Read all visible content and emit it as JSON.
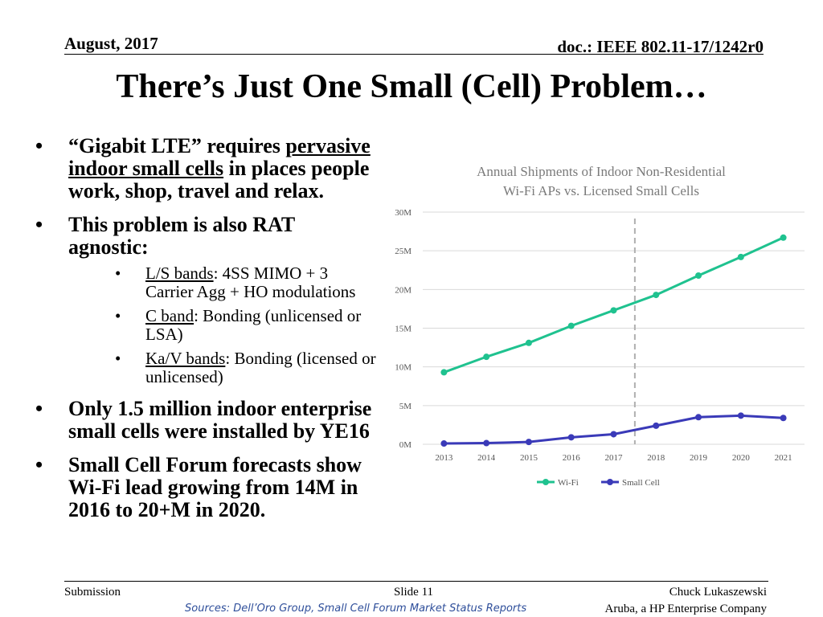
{
  "header": {
    "date": "August, 2017",
    "doc": "doc.: IEEE 802.11-17/1242r0"
  },
  "title": "There’s Just One Small (Cell) Problem…",
  "bullets": {
    "b1": {
      "p1": "“Gigabit LTE” requires ",
      "u": "pervasive indoor small cells",
      "p2": " in places people work, shop, travel and relax."
    },
    "b2": "This problem is also RAT agnostic:",
    "subs": [
      {
        "u": "L/S bands",
        "rest": ": 4SS MIMO + 3 Carrier Agg + HO modulations"
      },
      {
        "u": "C band",
        "rest": ": Bonding (unlicensed or LSA)"
      },
      {
        "u": "Ka/V bands",
        "rest": ": Bonding (licensed or unlicensed)"
      }
    ],
    "b3": "Only 1.5 million indoor enterprise small cells were installed by YE16",
    "b4": "Small Cell Forum forecasts show Wi-Fi lead growing from 14M in 2016 to 20+M in 2020."
  },
  "chart_data": {
    "type": "line",
    "title": "Annual Shipments of Indoor Non-Residential Wi-Fi APs vs. Licensed Small Cells",
    "categories": [
      "2013",
      "2014",
      "2015",
      "2016",
      "2017",
      "2018",
      "2019",
      "2020",
      "2021"
    ],
    "yticks": [
      "0M",
      "5M",
      "10M",
      "15M",
      "20M",
      "25M",
      "30M"
    ],
    "ylim": [
      0,
      30
    ],
    "grid": true,
    "legend_position": "bottom",
    "divider_between": [
      "2017",
      "2018"
    ],
    "series": [
      {
        "name": "Wi-Fi",
        "color": "#1fc28f",
        "values": [
          9.3,
          11.3,
          13.1,
          15.3,
          17.3,
          19.3,
          21.8,
          24.2,
          26.7
        ]
      },
      {
        "name": "Small Cell",
        "color": "#3a3ab8",
        "values": [
          0.1,
          0.15,
          0.3,
          0.9,
          1.3,
          2.4,
          3.5,
          3.7,
          3.4
        ]
      }
    ]
  },
  "footer": {
    "submission": "Submission",
    "slide": "Slide 11",
    "author": "Chuck Lukaszewski",
    "company": "Aruba, a HP Enterprise Company",
    "sources": "Sources:  Dell’Oro Group, Small Cell Forum Market Status Reports"
  }
}
